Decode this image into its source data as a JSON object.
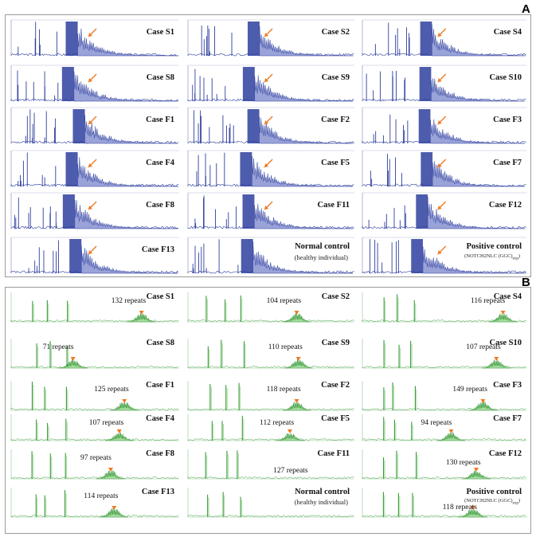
{
  "panels": {
    "a": {
      "letter": "A",
      "cases": [
        {
          "label": "Case S1"
        },
        {
          "label": "Case S2"
        },
        {
          "label": "Case S4"
        },
        {
          "label": "Case S8"
        },
        {
          "label": "Case S9"
        },
        {
          "label": "Case S10"
        },
        {
          "label": "Case F1"
        },
        {
          "label": "Case F2"
        },
        {
          "label": "Case F3"
        },
        {
          "label": "Case F4"
        },
        {
          "label": "Case F5"
        },
        {
          "label": "Case F7"
        },
        {
          "label": "Case F8"
        },
        {
          "label": "Case F11"
        },
        {
          "label": "Case F12"
        },
        {
          "label": "Case F13"
        },
        {
          "label": "Normal control",
          "sub": "(healthy individual)"
        },
        {
          "label": "Positive control",
          "sub2": "(NOTCH2NLC (GGC)",
          "sub2_subscript": "exp",
          "sub2_end": ")"
        }
      ]
    },
    "b": {
      "letter": "B",
      "cases": [
        {
          "label": "Case S1",
          "repeats": "132 repeats"
        },
        {
          "label": "Case S2",
          "repeats": "104 repeats"
        },
        {
          "label": "Case S4",
          "repeats": "116 repeats"
        },
        {
          "label": "Case S8",
          "repeats": "71 repeats"
        },
        {
          "label": "Case S9",
          "repeats": "110 repeats"
        },
        {
          "label": "Case S10",
          "repeats": "107 repeats"
        },
        {
          "label": "Case F1",
          "repeats": "125 repeats"
        },
        {
          "label": "Case F2",
          "repeats": "118 repeats"
        },
        {
          "label": "Case F3",
          "repeats": "149 repeats"
        },
        {
          "label": "Case F4",
          "repeats": "107 repeats"
        },
        {
          "label": "Case F5",
          "repeats": "112 repeats"
        },
        {
          "label": "Case F7",
          "repeats": "94 repeats"
        },
        {
          "label": "Case F8",
          "repeats": "97 repeats"
        },
        {
          "label": "Case F11",
          "repeats": "127 repeats"
        },
        {
          "label": "Case F12",
          "repeats": "130 repeats"
        },
        {
          "label": "Case F13",
          "repeats": "114 repeats"
        },
        {
          "label": "Normal control",
          "sub": "(healthy individual)"
        },
        {
          "label": "Positive control",
          "sub2": "(NOTCH2NLC (GGC)",
          "sub2_subscript": "exp",
          "sub2_end": ")",
          "repeats": "118 repeats"
        }
      ]
    }
  },
  "colors": {
    "panel_a_trace": "#2e3f9e",
    "panel_a_fill": "#9aa3d8",
    "panel_b_trace": "#3a9a3a",
    "panel_b_fill": "#a6dca0",
    "arrow": "#f07a22"
  }
}
